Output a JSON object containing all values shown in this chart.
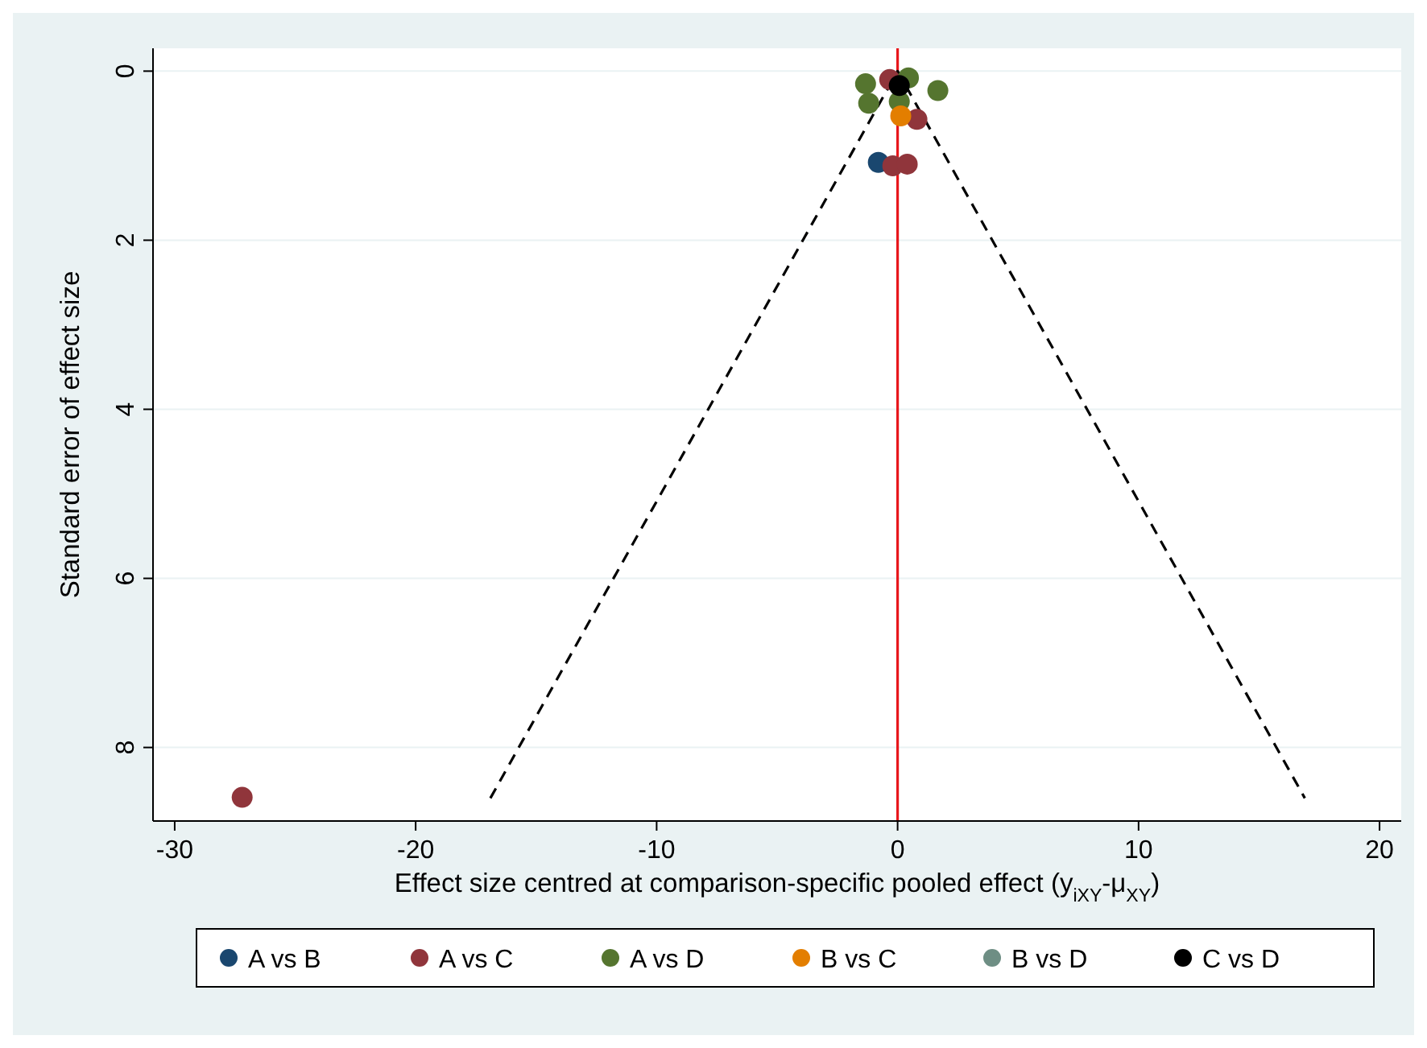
{
  "chart_data": {
    "type": "scatter",
    "xlabel": "Effect size centred at comparison-specific pooled effect (y$_{iXY}$-μ$_{XY}$)",
    "ylabel": "Standard error of effect size",
    "xlim": [
      -30.9,
      20.9
    ],
    "xticks": [
      -30,
      -20,
      -10,
      0,
      10,
      20
    ],
    "ylim": [
      8.87,
      -0.27
    ],
    "yticks": [
      0,
      2,
      4,
      6,
      8
    ],
    "grid": "y",
    "legend": "bottom",
    "marker": "circle",
    "ref_lines": [
      {
        "axis": "x",
        "value": 0,
        "color": "#e8161b"
      }
    ],
    "series": [
      {
        "type": "line",
        "color": "#000000",
        "line_style": "dashed",
        "marker": "none",
        "x": [
          -16.9,
          0,
          16.9
        ],
        "values": [
          8.6,
          0,
          8.6
        ]
      },
      {
        "name": "A vs B",
        "color": "#1a476f",
        "x": [
          -0.8
        ],
        "values": [
          1.08
        ]
      },
      {
        "name": "A vs C",
        "color": "#90353b",
        "x": [
          -0.33,
          0.8,
          -0.2,
          0.4,
          -27.2
        ],
        "values": [
          0.1,
          0.57,
          1.12,
          1.1,
          8.59
        ]
      },
      {
        "name": "A vs D",
        "color": "#55752f",
        "x": [
          -1.33,
          -1.2,
          1.67,
          null,
          0.45,
          0.07
        ],
        "values": [
          0.15,
          0.38,
          0.23,
          null,
          0.08,
          0.36
        ]
      },
      {
        "name": "B vs C",
        "color": "#e37e00",
        "x": [
          0.13
        ],
        "values": [
          0.53
        ]
      },
      {
        "name": "B vs D",
        "color": "#6e8e84"
      },
      {
        "name": "C vs D",
        "color": "#000000",
        "x": [
          0.07
        ],
        "values": [
          0.17
        ]
      }
    ]
  }
}
